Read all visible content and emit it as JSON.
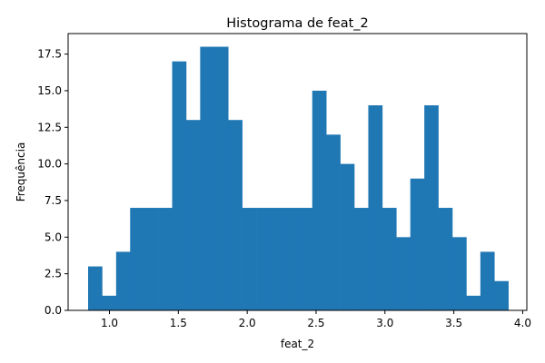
{
  "chart_data": {
    "type": "bar",
    "title": "Histograma de feat_2",
    "xlabel": "feat_2",
    "ylabel": "Frequência",
    "bar_color": "#1f77b4",
    "xlim": [
      0.7,
      4.03
    ],
    "ylim": [
      0,
      18.9
    ],
    "xticks": [
      1.0,
      1.5,
      2.0,
      2.5,
      3.0,
      3.5,
      4.0
    ],
    "xtick_labels": [
      "1.0",
      "1.5",
      "2.0",
      "2.5",
      "3.0",
      "3.5",
      "4.0"
    ],
    "yticks": [
      0,
      2.5,
      5,
      7.5,
      10,
      12.5,
      15,
      17.5
    ],
    "ytick_labels": [
      "0.0",
      "2.5",
      "5.0",
      "7.5",
      "10.0",
      "12.5",
      "15.0",
      "17.5"
    ],
    "bins": {
      "start": 0.845,
      "width": 0.1017,
      "counts": [
        3,
        1,
        4,
        7,
        7,
        7,
        17,
        13,
        18,
        18,
        13,
        7,
        7,
        7,
        7,
        7,
        15,
        12,
        10,
        7,
        14,
        7,
        5,
        9,
        14,
        7,
        5,
        1,
        4,
        2
      ]
    },
    "grid": false,
    "legend": "none"
  }
}
